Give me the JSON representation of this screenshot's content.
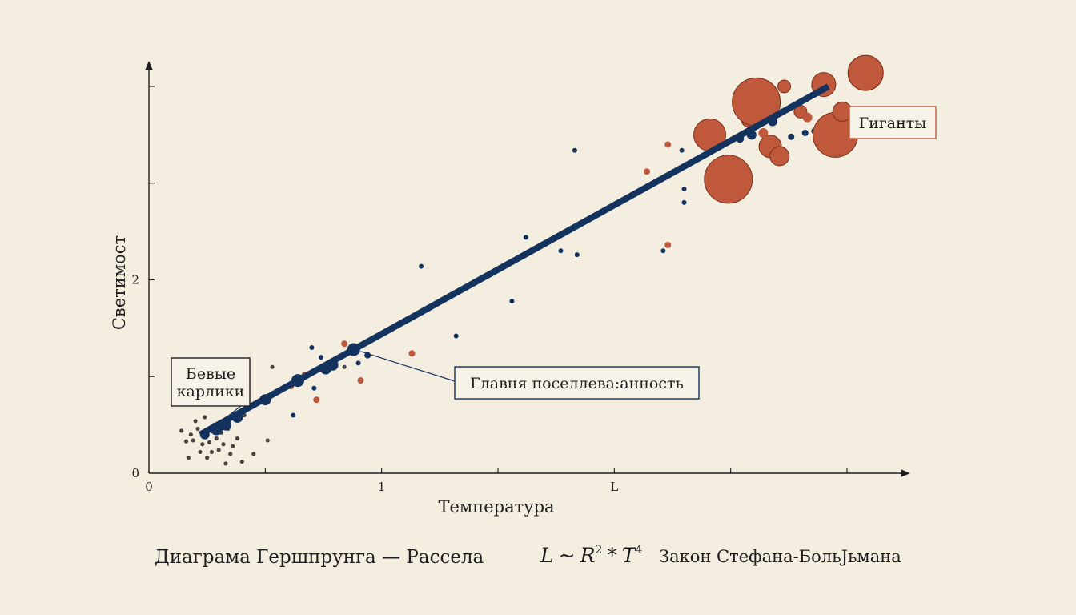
{
  "chart_data": {
    "type": "scatter",
    "title": "Диаграма Гершпрунга — Рассела",
    "xlabel": "Температура",
    "ylabel": "Светимост",
    "x_ticks": [
      {
        "value": 0,
        "label": "0"
      },
      {
        "value": 0.5,
        "label": ""
      },
      {
        "value": 1,
        "label": "1"
      },
      {
        "value": 1.5,
        "label": ""
      },
      {
        "value": 2,
        "label": "L"
      },
      {
        "value": 2.5,
        "label": ""
      },
      {
        "value": 3,
        "label": ""
      }
    ],
    "y_ticks": [
      {
        "value": 0,
        "label": "0"
      },
      {
        "value": 1,
        "label": ""
      },
      {
        "value": 2,
        "label": "2"
      },
      {
        "value": 3,
        "label": ""
      },
      {
        "value": 4,
        "label": ""
      }
    ],
    "xlim": [
      0,
      3.25
    ],
    "ylim": [
      0,
      4.2
    ],
    "grid": false,
    "trend_line": {
      "color": "#14325e",
      "from": [
        0.22,
        0.4
      ],
      "to": [
        2.92,
        4.0
      ]
    },
    "colors": {
      "main": "#14325e",
      "giant": "#c0583c",
      "dwarf": "#4a4440"
    },
    "series": [
      {
        "group": "dwarfs",
        "points": [
          [
            0.14,
            0.44
          ],
          [
            0.16,
            0.33
          ],
          [
            0.17,
            0.16
          ],
          [
            0.18,
            0.4
          ],
          [
            0.19,
            0.34
          ],
          [
            0.2,
            0.54
          ],
          [
            0.21,
            0.46
          ],
          [
            0.22,
            0.22
          ],
          [
            0.23,
            0.3
          ],
          [
            0.24,
            0.58
          ],
          [
            0.25,
            0.16
          ],
          [
            0.26,
            0.32
          ],
          [
            0.27,
            0.22
          ],
          [
            0.28,
            0.5
          ],
          [
            0.29,
            0.36
          ],
          [
            0.3,
            0.24
          ],
          [
            0.31,
            0.42
          ],
          [
            0.32,
            0.3
          ],
          [
            0.33,
            0.1
          ],
          [
            0.34,
            0.46
          ],
          [
            0.35,
            0.2
          ],
          [
            0.36,
            0.28
          ],
          [
            0.38,
            0.36
          ],
          [
            0.4,
            0.12
          ],
          [
            0.41,
            0.6
          ],
          [
            0.45,
            0.2
          ],
          [
            0.51,
            0.34
          ],
          [
            0.53,
            1.1
          ],
          [
            0.84,
            1.1
          ]
        ]
      },
      {
        "group": "main",
        "points": [
          {
            "x": 0.24,
            "y": 0.4,
            "s": 6
          },
          {
            "x": 0.29,
            "y": 0.46,
            "s": 8
          },
          {
            "x": 0.33,
            "y": 0.5,
            "s": 7
          },
          {
            "x": 0.38,
            "y": 0.58,
            "s": 7
          },
          {
            "x": 0.41,
            "y": 0.64,
            "s": 3
          },
          {
            "x": 0.5,
            "y": 0.76,
            "s": 7
          },
          {
            "x": 0.64,
            "y": 0.96,
            "s": 8
          },
          {
            "x": 0.76,
            "y": 1.08,
            "s": 7
          },
          {
            "x": 0.79,
            "y": 1.12,
            "s": 7
          },
          {
            "x": 0.88,
            "y": 1.28,
            "s": 8
          },
          {
            "x": 0.94,
            "y": 1.22,
            "s": 4
          },
          {
            "x": 0.7,
            "y": 1.3,
            "s": 3
          },
          {
            "x": 0.74,
            "y": 1.2,
            "s": 3
          },
          {
            "x": 0.9,
            "y": 1.14,
            "s": 3
          },
          {
            "x": 0.71,
            "y": 0.88,
            "s": 3
          },
          {
            "x": 0.62,
            "y": 0.6,
            "s": 3
          },
          {
            "x": 1.32,
            "y": 1.42,
            "s": 3
          },
          {
            "x": 1.17,
            "y": 2.14,
            "s": 3
          },
          {
            "x": 1.56,
            "y": 1.78,
            "s": 3
          },
          {
            "x": 1.62,
            "y": 2.44,
            "s": 3
          },
          {
            "x": 1.77,
            "y": 2.3,
            "s": 3
          },
          {
            "x": 1.84,
            "y": 2.26,
            "s": 3
          },
          {
            "x": 1.83,
            "y": 3.34,
            "s": 3
          },
          {
            "x": 2.21,
            "y": 2.3,
            "s": 3
          },
          {
            "x": 2.3,
            "y": 2.94,
            "s": 3
          },
          {
            "x": 2.3,
            "y": 2.8,
            "s": 3
          },
          {
            "x": 2.29,
            "y": 3.34,
            "s": 3
          },
          {
            "x": 2.42,
            "y": 3.5,
            "s": 4
          },
          {
            "x": 2.54,
            "y": 3.46,
            "s": 5
          },
          {
            "x": 2.59,
            "y": 3.5,
            "s": 6
          },
          {
            "x": 2.68,
            "y": 3.64,
            "s": 6
          },
          {
            "x": 2.76,
            "y": 3.48,
            "s": 4
          },
          {
            "x": 2.82,
            "y": 3.52,
            "s": 4
          },
          {
            "x": 2.86,
            "y": 3.54,
            "s": 4
          },
          {
            "x": 2.86,
            "y": 4.0,
            "s": 4
          }
        ]
      },
      {
        "group": "giants",
        "points": [
          {
            "x": 0.61,
            "y": 0.9,
            "s": 4
          },
          {
            "x": 0.67,
            "y": 1.02,
            "s": 4
          },
          {
            "x": 0.72,
            "y": 0.76,
            "s": 4
          },
          {
            "x": 0.84,
            "y": 1.34,
            "s": 4
          },
          {
            "x": 0.91,
            "y": 0.96,
            "s": 4
          },
          {
            "x": 1.13,
            "y": 1.24,
            "s": 4
          },
          {
            "x": 2.14,
            "y": 3.12,
            "s": 4
          },
          {
            "x": 2.23,
            "y": 3.4,
            "s": 4
          },
          {
            "x": 2.23,
            "y": 2.36,
            "s": 4
          },
          {
            "x": 2.41,
            "y": 3.5,
            "s": 20
          },
          {
            "x": 2.49,
            "y": 3.04,
            "s": 30
          },
          {
            "x": 2.58,
            "y": 3.66,
            "s": 10
          },
          {
            "x": 2.61,
            "y": 3.84,
            "s": 30
          },
          {
            "x": 2.67,
            "y": 3.38,
            "s": 14
          },
          {
            "x": 2.71,
            "y": 3.28,
            "s": 12
          },
          {
            "x": 2.73,
            "y": 4.0,
            "s": 8
          },
          {
            "x": 2.8,
            "y": 3.74,
            "s": 8
          },
          {
            "x": 2.83,
            "y": 3.68,
            "s": 6
          },
          {
            "x": 2.64,
            "y": 3.52,
            "s": 6
          },
          {
            "x": 2.9,
            "y": 4.02,
            "s": 15
          },
          {
            "x": 2.95,
            "y": 3.5,
            "s": 28
          },
          {
            "x": 2.98,
            "y": 3.74,
            "s": 12
          },
          {
            "x": 3.08,
            "y": 4.14,
            "s": 22
          },
          {
            "x": 2.58,
            "y": 3.52,
            "s": 5
          }
        ]
      }
    ],
    "annotations": [
      {
        "text_lines": [
          "Бевые",
          "карлики"
        ],
        "target": [
          0.24,
          0.4
        ]
      },
      {
        "text_lines": [
          "Главня поселлева:анность"
        ],
        "target": [
          0.91,
          1.26
        ]
      },
      {
        "text_lines": [
          "Гиганты"
        ],
        "target": [
          3.0,
          3.7
        ]
      }
    ]
  },
  "footer": {
    "caption": "Диаграма Гершпрунга — Рассела",
    "formula_l": "L",
    "formula_tilde": "~",
    "formula_r": "R",
    "formula_r_exp": "2",
    "formula_star": "*",
    "formula_t": "T",
    "formula_t_exp": "4",
    "law_text": "Закон Стефанa-БольЈьмана"
  }
}
